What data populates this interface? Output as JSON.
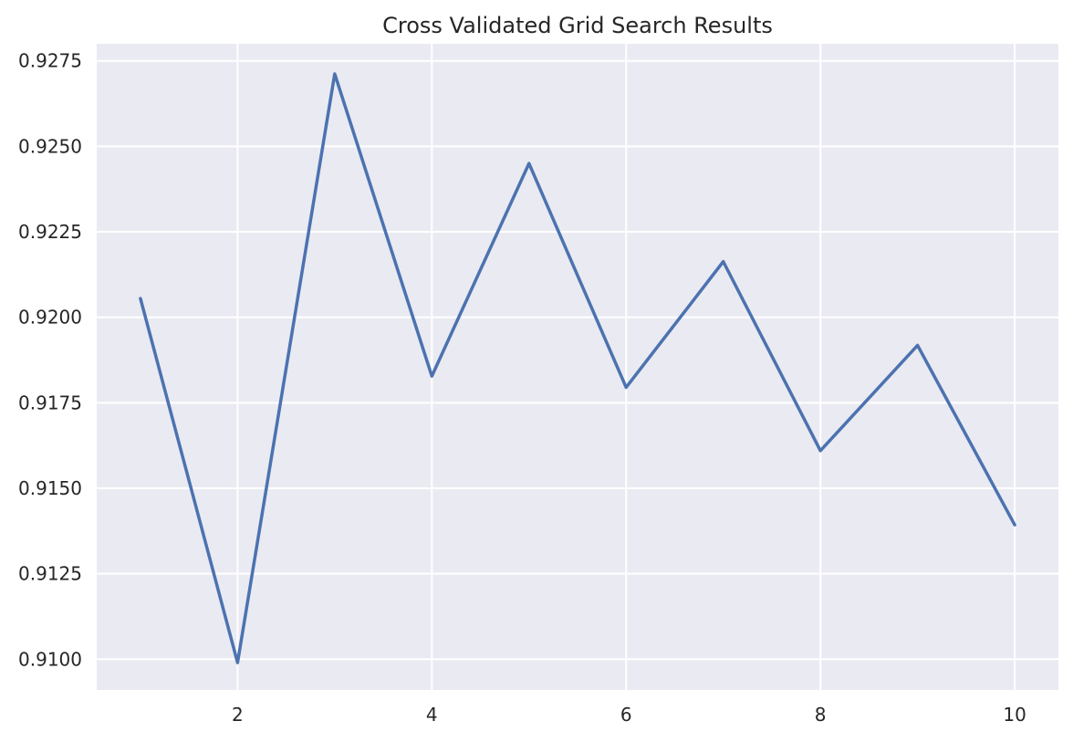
{
  "chart_data": {
    "type": "line",
    "title": "Cross Validated Grid Search Results",
    "xlabel": "",
    "ylabel": "",
    "x": [
      1,
      2,
      3,
      4,
      5,
      6,
      7,
      8,
      9,
      10
    ],
    "series": [
      {
        "values": [
          0.92055,
          0.9099,
          0.92712,
          0.91828,
          0.9245,
          0.91795,
          0.92163,
          0.9161,
          0.91918,
          0.91393
        ]
      }
    ],
    "xticks": [
      2,
      4,
      6,
      8,
      10
    ],
    "xtick_labels": [
      "2",
      "4",
      "6",
      "8",
      "10"
    ],
    "yticks": [
      0.91,
      0.9125,
      0.915,
      0.9175,
      0.92,
      0.9225,
      0.925,
      0.9275
    ],
    "ytick_labels": [
      "0.9100",
      "0.9125",
      "0.9150",
      "0.9175",
      "0.9200",
      "0.9225",
      "0.9250",
      "0.9275"
    ],
    "xlim": [
      0.55,
      10.45
    ],
    "ylim": [
      0.9091,
      0.928
    ],
    "grid": true,
    "colors": {
      "background": "#eaeaf2",
      "line": "#4c72b0",
      "grid": "#ffffff"
    }
  }
}
